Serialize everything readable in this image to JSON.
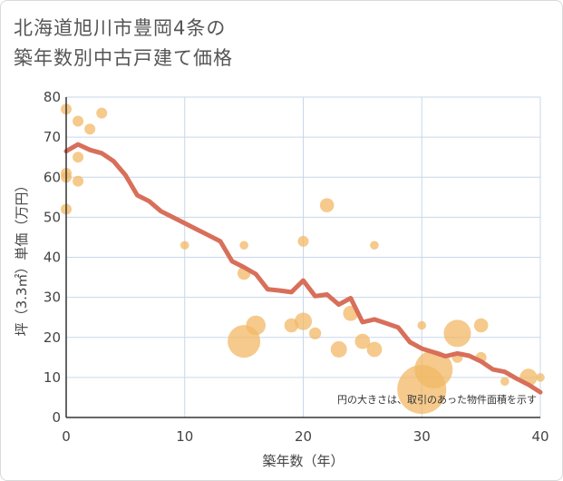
{
  "title_lines": [
    "北海道旭川市豊岡4条の",
    "築年数別中古戸建て価格"
  ],
  "chart_data": {
    "type": "scatter",
    "xlabel": "築年数（年）",
    "ylabel": "坪（3.3㎡）単価（万円）",
    "xlim": [
      0,
      40
    ],
    "ylim": [
      0,
      80
    ],
    "x_ticks": [
      "0",
      "10",
      "20",
      "30",
      "40"
    ],
    "y_ticks": [
      "0",
      "10",
      "20",
      "30",
      "40",
      "50",
      "60",
      "70",
      "80"
    ],
    "note": "円の大きさは、取引のあった物件面積を示す",
    "colors": {
      "bubble": "#f2b866",
      "line": "#d86f5a",
      "grid": "#c9d7ea"
    },
    "bubbles": [
      {
        "x": 0,
        "y": 77,
        "size": 1
      },
      {
        "x": 0,
        "y": 61,
        "size": 1
      },
      {
        "x": 0,
        "y": 60,
        "size": 1
      },
      {
        "x": 0,
        "y": 52,
        "size": 1
      },
      {
        "x": 1,
        "y": 74,
        "size": 1
      },
      {
        "x": 1,
        "y": 65,
        "size": 1
      },
      {
        "x": 1,
        "y": 59,
        "size": 1
      },
      {
        "x": 2,
        "y": 72,
        "size": 1
      },
      {
        "x": 3,
        "y": 76,
        "size": 1
      },
      {
        "x": 10,
        "y": 43,
        "size": 0.8
      },
      {
        "x": 15,
        "y": 43,
        "size": 0.8
      },
      {
        "x": 15,
        "y": 36,
        "size": 1.2
      },
      {
        "x": 15,
        "y": 19,
        "size": 3
      },
      {
        "x": 16,
        "y": 23,
        "size": 1.8
      },
      {
        "x": 19,
        "y": 23,
        "size": 1.3
      },
      {
        "x": 20,
        "y": 44,
        "size": 1
      },
      {
        "x": 20,
        "y": 24,
        "size": 1.6
      },
      {
        "x": 21,
        "y": 21,
        "size": 1.1
      },
      {
        "x": 22,
        "y": 53,
        "size": 1.3
      },
      {
        "x": 23,
        "y": 17,
        "size": 1.5
      },
      {
        "x": 24,
        "y": 26,
        "size": 1.4
      },
      {
        "x": 25,
        "y": 19,
        "size": 1.4
      },
      {
        "x": 26,
        "y": 43,
        "size": 0.8
      },
      {
        "x": 26,
        "y": 17,
        "size": 1.4
      },
      {
        "x": 30,
        "y": 23,
        "size": 0.8
      },
      {
        "x": 30,
        "y": 7,
        "size": 4.5
      },
      {
        "x": 31,
        "y": 12,
        "size": 3.5
      },
      {
        "x": 33,
        "y": 21,
        "size": 2.5
      },
      {
        "x": 33,
        "y": 15,
        "size": 1
      },
      {
        "x": 35,
        "y": 23,
        "size": 1.3
      },
      {
        "x": 35,
        "y": 15,
        "size": 1
      },
      {
        "x": 37,
        "y": 9,
        "size": 0.8
      },
      {
        "x": 39,
        "y": 10,
        "size": 1.6
      },
      {
        "x": 40,
        "y": 10,
        "size": 0.8
      }
    ],
    "line": [
      [
        0,
        66.5
      ],
      [
        1,
        68.2
      ],
      [
        2,
        66.8
      ],
      [
        3,
        66
      ],
      [
        4,
        64
      ],
      [
        5,
        60.5
      ],
      [
        6,
        55.5
      ],
      [
        7,
        54
      ],
      [
        8,
        51.5
      ],
      [
        9,
        50
      ],
      [
        10,
        48.5
      ],
      [
        11,
        47
      ],
      [
        12,
        45.5
      ],
      [
        13,
        44
      ],
      [
        14,
        39
      ],
      [
        15,
        37.5
      ],
      [
        16,
        35.8
      ],
      [
        17,
        32
      ],
      [
        18,
        31.7
      ],
      [
        19,
        31.3
      ],
      [
        20,
        34.2
      ],
      [
        21,
        30.3
      ],
      [
        22,
        30.7
      ],
      [
        23,
        28.2
      ],
      [
        24,
        29.8
      ],
      [
        25,
        23.8
      ],
      [
        26,
        24.5
      ],
      [
        27,
        23.5
      ],
      [
        28,
        22.5
      ],
      [
        29,
        18.8
      ],
      [
        30,
        17.2
      ],
      [
        31,
        16.3
      ],
      [
        32,
        15.3
      ],
      [
        33,
        16
      ],
      [
        34,
        15.4
      ],
      [
        35,
        14
      ],
      [
        36,
        12
      ],
      [
        37,
        11.4
      ],
      [
        38,
        9.7
      ],
      [
        39,
        8.2
      ],
      [
        40,
        6.3
      ]
    ]
  }
}
